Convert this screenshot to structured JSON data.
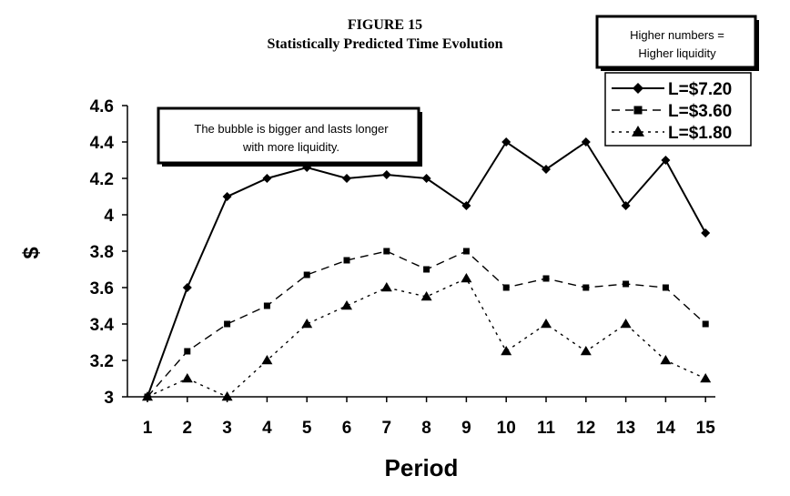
{
  "chart_data": {
    "type": "line",
    "figure_label": "FIGURE 15",
    "title": "Statistically Predicted Time Evolution",
    "xlabel": "Period",
    "ylabel": "$",
    "x": [
      1,
      2,
      3,
      4,
      5,
      6,
      7,
      8,
      9,
      10,
      11,
      12,
      13,
      14,
      15
    ],
    "ylim": [
      3,
      4.6
    ],
    "yticks": [
      "3",
      "3.2",
      "3.4",
      "3.6",
      "3.8",
      "4",
      "4.2",
      "4.4",
      "4.6"
    ],
    "grid": false,
    "legend_position": "top-right",
    "series": [
      {
        "name": "L=$7.20",
        "style": "solid",
        "marker": "diamond",
        "values": [
          3.0,
          3.6,
          4.1,
          4.2,
          4.26,
          4.2,
          4.22,
          4.2,
          4.05,
          4.4,
          4.25,
          4.4,
          4.05,
          4.3,
          3.9
        ]
      },
      {
        "name": "L=$3.60",
        "style": "dashed",
        "marker": "square",
        "values": [
          3.0,
          3.25,
          3.4,
          3.5,
          3.67,
          3.75,
          3.8,
          3.7,
          3.8,
          3.6,
          3.65,
          3.6,
          3.62,
          3.6,
          3.4
        ]
      },
      {
        "name": "L=$1.80",
        "style": "dotted",
        "marker": "triangle",
        "values": [
          3.0,
          3.1,
          3.0,
          3.2,
          3.4,
          3.5,
          3.6,
          3.55,
          3.65,
          3.25,
          3.4,
          3.25,
          3.4,
          3.2,
          3.1
        ]
      }
    ],
    "annotations": {
      "bubble_note": [
        "The bubble is bigger and lasts longer",
        "with more liquidity."
      ],
      "liquidity_note": [
        "Higher numbers =",
        "Higher liquidity"
      ]
    }
  }
}
